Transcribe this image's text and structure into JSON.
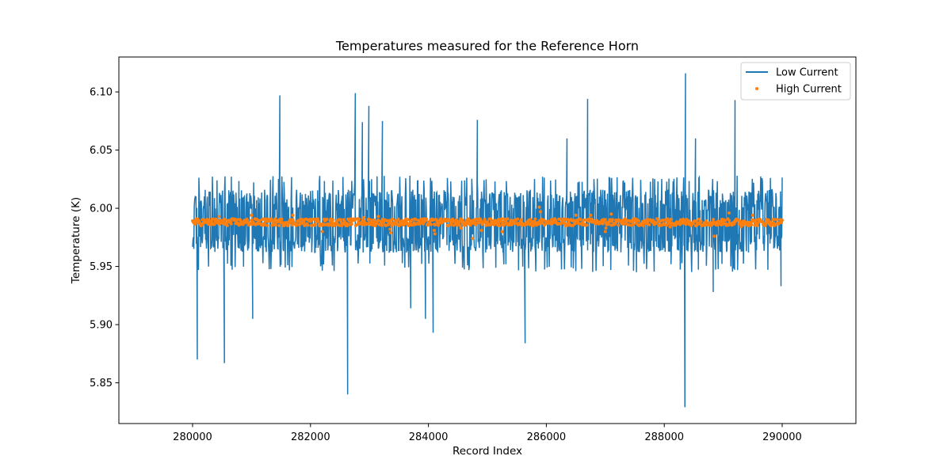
{
  "chart_data": {
    "type": "line",
    "title": "Temperatures measured for the Reference Horn",
    "xlabel": "Record Index",
    "ylabel": "Temperature (K)",
    "xlim": [
      278750,
      291250
    ],
    "ylim": [
      5.815,
      6.13
    ],
    "x_ticks": [
      280000,
      282000,
      284000,
      286000,
      288000,
      290000
    ],
    "y_ticks": [
      5.85,
      5.9,
      5.95,
      6.0,
      6.05,
      6.1
    ],
    "x_tick_labels": [
      "280000",
      "282000",
      "284000",
      "286000",
      "288000",
      "290000"
    ],
    "y_tick_labels": [
      "5.85",
      "5.90",
      "5.95",
      "6.00",
      "6.05",
      "6.10"
    ],
    "grid": false,
    "legend_position": "top-right",
    "x_range": [
      280000,
      290000
    ],
    "series": [
      {
        "name": "Low Current",
        "style": "line",
        "color": "#1f77b4",
        "typical_band": [
          5.962,
          6.016
        ],
        "envelope": [
          5.945,
          6.028
        ],
        "mean": 5.988,
        "spikes": [
          {
            "x": 280080,
            "y": 5.87
          },
          {
            "x": 280540,
            "y": 5.867
          },
          {
            "x": 281020,
            "y": 5.905
          },
          {
            "x": 281480,
            "y": 6.097
          },
          {
            "x": 282630,
            "y": 5.84
          },
          {
            "x": 282760,
            "y": 6.099
          },
          {
            "x": 282880,
            "y": 6.074
          },
          {
            "x": 282990,
            "y": 6.088
          },
          {
            "x": 283220,
            "y": 6.075
          },
          {
            "x": 283700,
            "y": 5.914
          },
          {
            "x": 283950,
            "y": 5.905
          },
          {
            "x": 284080,
            "y": 5.893
          },
          {
            "x": 284830,
            "y": 6.076
          },
          {
            "x": 285640,
            "y": 5.884
          },
          {
            "x": 286350,
            "y": 6.06
          },
          {
            "x": 286700,
            "y": 6.094
          },
          {
            "x": 288350,
            "y": 5.829
          },
          {
            "x": 288360,
            "y": 6.116
          },
          {
            "x": 288530,
            "y": 6.06
          },
          {
            "x": 288830,
            "y": 5.928
          },
          {
            "x": 289200,
            "y": 6.093
          },
          {
            "x": 289980,
            "y": 5.933
          }
        ]
      },
      {
        "name": "High Current",
        "style": "scatter",
        "color": "#ff7f0e",
        "mean": 5.988,
        "band": [
          5.985,
          5.991
        ],
        "outliers": [
          {
            "x": 280450,
            "y": 5.993
          },
          {
            "x": 281000,
            "y": 5.994
          },
          {
            "x": 281700,
            "y": 5.994
          },
          {
            "x": 282200,
            "y": 5.98
          },
          {
            "x": 282900,
            "y": 5.992
          },
          {
            "x": 283150,
            "y": 5.993
          },
          {
            "x": 283350,
            "y": 5.982
          },
          {
            "x": 283360,
            "y": 5.979
          },
          {
            "x": 284100,
            "y": 5.981
          },
          {
            "x": 284110,
            "y": 5.978
          },
          {
            "x": 284550,
            "y": 5.983
          },
          {
            "x": 284750,
            "y": 5.974
          },
          {
            "x": 284900,
            "y": 5.981
          },
          {
            "x": 285250,
            "y": 5.98
          },
          {
            "x": 285880,
            "y": 6.001
          },
          {
            "x": 285900,
            "y": 5.997
          },
          {
            "x": 286500,
            "y": 5.994
          },
          {
            "x": 286750,
            "y": 5.994
          },
          {
            "x": 287000,
            "y": 5.98
          },
          {
            "x": 287010,
            "y": 5.983
          },
          {
            "x": 287100,
            "y": 5.995
          },
          {
            "x": 288100,
            "y": 5.984
          },
          {
            "x": 288850,
            "y": 5.976
          },
          {
            "x": 289100,
            "y": 5.996
          },
          {
            "x": 289300,
            "y": 5.984
          },
          {
            "x": 289500,
            "y": 5.994
          }
        ]
      }
    ]
  }
}
